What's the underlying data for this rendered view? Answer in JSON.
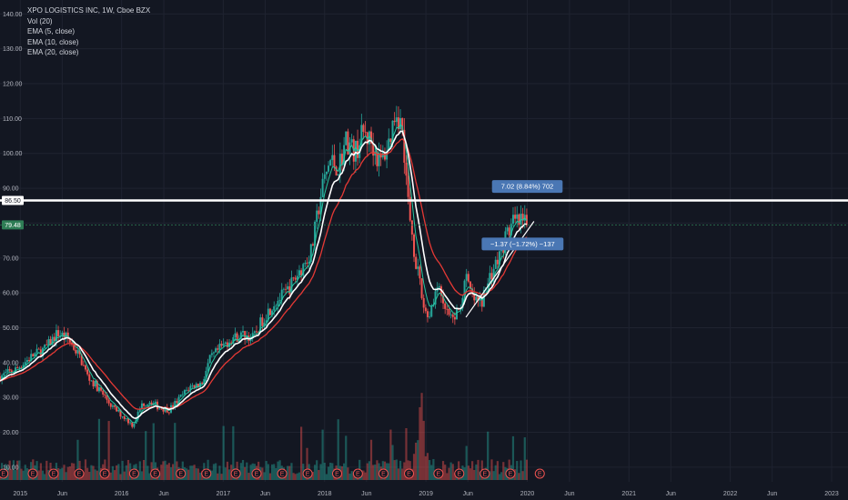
{
  "legend": {
    "title": "XPO LOGISTICS INC, 1W, Cboe BZX",
    "indicators": [
      "Vol (20)",
      "EMA (5, close)",
      "EMA (10, close)",
      "EMA (20, close)"
    ]
  },
  "colors": {
    "background": "#131722",
    "grid": "#1f2330",
    "up": "#26a69a",
    "down": "#ef5350",
    "ema5": "#26c6a0",
    "ema10": "#ffffff",
    "ema20": "#e53935",
    "level_line": "#ffffff",
    "annotation": "#4a77b4",
    "price_tag": "#2e7d55"
  },
  "chart_data": {
    "type": "candlestick",
    "title": "XPO LOGISTICS INC, 1W, Cboe BZX",
    "xlabel": "",
    "ylabel": "",
    "x_range": [
      "2014-10-20",
      "2023-03-01"
    ],
    "ylim": [
      5,
      144
    ],
    "y_ticks": [
      "10.00",
      "20.00",
      "30.00",
      "40.00",
      "50.00",
      "60.00",
      "70.00",
      "80.00",
      "90.00",
      "100.00",
      "110.00",
      "120.00",
      "130.00",
      "140.00"
    ],
    "x_ticks": [
      {
        "label": "2015",
        "date": "2015-01-01"
      },
      {
        "label": "Jun",
        "date": "2015-06-01"
      },
      {
        "label": "2016",
        "date": "2016-01-01"
      },
      {
        "label": "Jun",
        "date": "2016-06-01"
      },
      {
        "label": "2017",
        "date": "2017-01-01"
      },
      {
        "label": "Jun",
        "date": "2017-06-01"
      },
      {
        "label": "2018",
        "date": "2018-01-01"
      },
      {
        "label": "Jun",
        "date": "2018-06-01"
      },
      {
        "label": "2019",
        "date": "2019-01-01"
      },
      {
        "label": "Jun",
        "date": "2019-06-01"
      },
      {
        "label": "2020",
        "date": "2020-01-01"
      },
      {
        "label": "Jun",
        "date": "2020-06-01"
      },
      {
        "label": "2021",
        "date": "2021-01-01"
      },
      {
        "label": "Jun",
        "date": "2021-06-01"
      },
      {
        "label": "2022",
        "date": "2022-01-01"
      },
      {
        "label": "Jun",
        "date": "2022-06-01"
      },
      {
        "label": "2023",
        "date": "2023-01-01"
      }
    ],
    "price_path": [
      [
        "2014-10-20",
        36
      ],
      [
        "2014-12-15",
        38
      ],
      [
        "2015-02-15",
        42
      ],
      [
        "2015-04-01",
        44
      ],
      [
        "2015-05-15",
        48.5
      ],
      [
        "2015-06-20",
        47
      ],
      [
        "2015-08-01",
        42
      ],
      [
        "2015-09-01",
        36
      ],
      [
        "2015-10-15",
        32
      ],
      [
        "2015-12-01",
        27
      ],
      [
        "2016-01-15",
        24
      ],
      [
        "2016-02-10",
        22
      ],
      [
        "2016-03-15",
        28
      ],
      [
        "2016-04-15",
        29
      ],
      [
        "2016-05-15",
        27
      ],
      [
        "2016-06-20",
        26.5
      ],
      [
        "2016-07-20",
        29
      ],
      [
        "2016-09-01",
        33
      ],
      [
        "2016-10-15",
        34
      ],
      [
        "2016-11-15",
        41
      ],
      [
        "2016-12-20",
        44
      ],
      [
        "2017-02-01",
        47
      ],
      [
        "2017-03-15",
        48
      ],
      [
        "2017-04-20",
        47
      ],
      [
        "2017-05-20",
        52
      ],
      [
        "2017-07-01",
        57
      ],
      [
        "2017-08-15",
        60
      ],
      [
        "2017-10-01",
        66
      ],
      [
        "2017-11-15",
        72
      ],
      [
        "2017-12-20",
        89
      ],
      [
        "2018-01-20",
        98
      ],
      [
        "2018-02-20",
        96
      ],
      [
        "2018-03-20",
        104
      ],
      [
        "2018-04-20",
        100
      ],
      [
        "2018-05-20",
        106
      ],
      [
        "2018-06-20",
        103
      ],
      [
        "2018-07-20",
        97
      ],
      [
        "2018-08-20",
        103
      ],
      [
        "2018-09-15",
        113
      ],
      [
        "2018-10-10",
        106
      ],
      [
        "2018-10-30",
        85
      ],
      [
        "2018-11-20",
        72
      ],
      [
        "2018-12-20",
        57
      ],
      [
        "2019-01-10",
        53
      ],
      [
        "2019-02-10",
        62
      ],
      [
        "2019-03-01",
        57
      ],
      [
        "2019-04-01",
        52
      ],
      [
        "2019-05-01",
        55
      ],
      [
        "2019-05-25",
        64
      ],
      [
        "2019-06-20",
        58
      ],
      [
        "2019-07-20",
        57
      ],
      [
        "2019-08-20",
        65
      ],
      [
        "2019-09-20",
        70
      ],
      [
        "2019-10-20",
        77
      ],
      [
        "2019-11-10",
        80
      ],
      [
        "2019-12-10",
        80
      ],
      [
        "2020-01-05",
        79.48
      ]
    ],
    "volume_peak": {
      "date": "2018-12-15",
      "value": 40
    },
    "current_price": "79.48",
    "horizontal_level": "86.50",
    "trendline": [
      [
        "2019-05-25",
        53
      ],
      [
        "2020-01-25",
        80.5
      ]
    ],
    "annotations": [
      {
        "text": "7.02 (8.84%) 702",
        "date": "2020-01-01",
        "price": 90.5
      },
      {
        "text": "−1.37 (−1.72%) −137",
        "date": "2019-12-15",
        "price": 74
      }
    ],
    "event_marker_label": "E",
    "event_dates": [
      "2014-11-01",
      "2015-02-15",
      "2015-05-01",
      "2015-08-01",
      "2015-11-01",
      "2016-02-15",
      "2016-05-01",
      "2016-08-01",
      "2016-11-01",
      "2017-02-15",
      "2017-05-01",
      "2017-08-01",
      "2017-11-01",
      "2018-02-15",
      "2018-05-01",
      "2018-08-01",
      "2018-11-01",
      "2019-02-15",
      "2019-05-01",
      "2019-08-01",
      "2019-11-01",
      "2020-02-15"
    ],
    "grid": true,
    "legend_position": "top-left"
  }
}
